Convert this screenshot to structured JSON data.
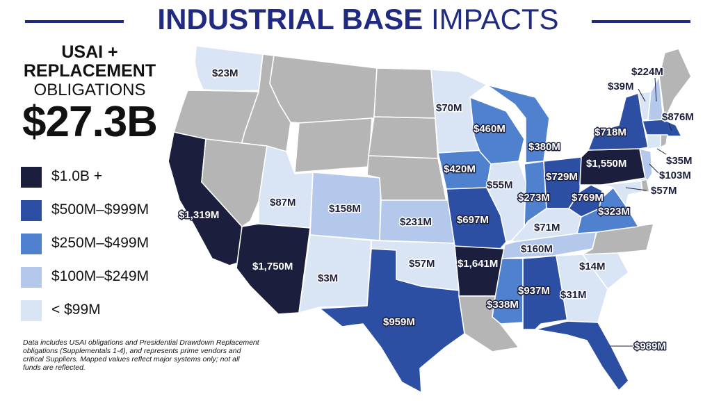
{
  "title": {
    "bold": "INDUSTRIAL BASE",
    "light": "IMPACTS"
  },
  "summary": {
    "line1": "USAI +",
    "line2": "REPLACEMENT",
    "line3": "OBLIGATIONS",
    "total": "$27.3B"
  },
  "legend": [
    {
      "label": "$1.0B +",
      "color": "#1b1f3d"
    },
    {
      "label": "$500M–$999M",
      "color": "#2c4fa3"
    },
    {
      "label": "$250M–$499M",
      "color": "#5081cf"
    },
    {
      "label": "$100M–$249M",
      "color": "#b3c8ea"
    },
    {
      "label": "< $99M",
      "color": "#d9e5f5"
    }
  ],
  "colors": {
    "no_data": "#b5b5b5",
    "title": "#1f2a80"
  },
  "note": "Data includes USAI obligations and Presidential Drawdown Replacement obligations (Supplementals 1-4), and represents prime vendors and critical Suppliers. Mapped values reflect major systems only; not all funds are reflected.",
  "states": {
    "WA": "$23M",
    "CA": "$1,319M",
    "AZ": "$1,750M",
    "UT": "$87M",
    "CO": "$158M",
    "NM": "$3M",
    "TX": "$959M",
    "OK": "$57M",
    "KS": "$231M",
    "MN": "$70M",
    "IA": "$420M",
    "WI": "$460M",
    "MO": "$697M",
    "AR": "$1,641M",
    "IL": "$55M",
    "MI": "$380M",
    "IN": "$273M",
    "OH": "$729M",
    "KY": "$71M",
    "TN": "$160M",
    "MS": "$338M",
    "AL": "$937M",
    "GA": "$31M",
    "FL": "$989M",
    "SC": "$14M",
    "WV": "$769M",
    "VA": "$323M",
    "PA": "$1,550M",
    "NY": "$718M",
    "NH": "$224M",
    "VT": "$39M",
    "MA": "$876M",
    "CT": "$35M",
    "NJ": "$103M",
    "MD": "$57M"
  }
}
